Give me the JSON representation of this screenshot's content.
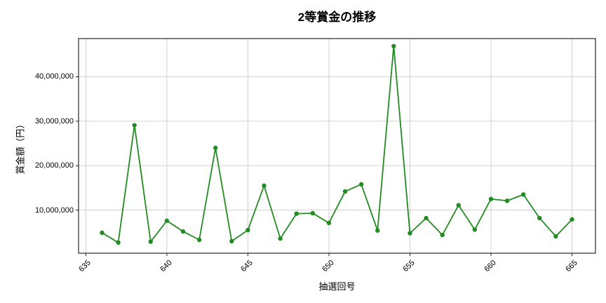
{
  "chart_data": {
    "type": "line",
    "title": "2等賞金の推移",
    "xlabel": "抽選回号",
    "ylabel": "賞金額（円）",
    "x": [
      636,
      637,
      638,
      639,
      640,
      641,
      642,
      643,
      644,
      645,
      646,
      647,
      648,
      649,
      650,
      651,
      652,
      653,
      654,
      655,
      656,
      657,
      658,
      659,
      660,
      661,
      662,
      663,
      664,
      665
    ],
    "values": [
      4900000,
      2700000,
      29100000,
      2900000,
      7600000,
      5200000,
      3300000,
      24000000,
      3000000,
      5500000,
      15500000,
      3600000,
      9200000,
      9300000,
      7100000,
      14200000,
      15800000,
      5400000,
      46900000,
      4800000,
      8200000,
      4400000,
      11100000,
      5600000,
      12500000,
      12100000,
      13500000,
      8200000,
      4100000,
      7900000
    ],
    "xlim": [
      634.55,
      666.45
    ],
    "ylim": [
      300000,
      48600000
    ],
    "x_ticks": [
      635,
      640,
      645,
      650,
      655,
      660,
      665
    ],
    "x_tick_labels": [
      "635",
      "640",
      "645",
      "650",
      "655",
      "660",
      "665"
    ],
    "y_ticks": [
      10000000,
      20000000,
      30000000,
      40000000
    ],
    "y_tick_labels": [
      "10,000,000",
      "20,000,000",
      "30,000,000",
      "40,000,000"
    ],
    "grid": true,
    "legend": "none",
    "line_color": "#228B22",
    "marker_color": "#228B22",
    "grid_color": "#cccccc",
    "spine_color": "#262626"
  }
}
